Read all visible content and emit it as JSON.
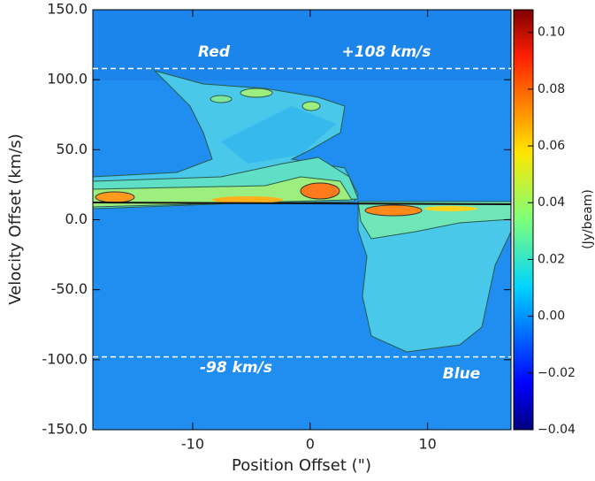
{
  "chart_data": {
    "type": "heatmap",
    "xlabel": "Position Offset (\")",
    "ylabel": "Velocity Offset (km/s)",
    "xlim": [
      -18.5,
      17.1
    ],
    "ylim": [
      -150,
      150
    ],
    "xticks": [
      -10,
      0,
      10
    ],
    "yticks": [
      {
        "value": 150,
        "label": "150.0"
      },
      {
        "value": 100,
        "label": "100.0"
      },
      {
        "value": 50,
        "label": "50.0"
      },
      {
        "value": 0,
        "label": "0.0"
      },
      {
        "value": -50,
        "label": "-50.0"
      },
      {
        "value": -100,
        "label": "-100.0"
      },
      {
        "value": -150,
        "label": "-150.0"
      }
    ],
    "hlines": [
      108,
      -98
    ],
    "annotations": [
      "Red",
      "+108 km/s",
      "-98 km/s",
      "Blue"
    ],
    "colorbar": {
      "label": "(Jy/beam)",
      "colormap": "jet",
      "clim": [
        -0.04,
        0.108
      ],
      "ticks": [
        {
          "value": 0.1,
          "label": "0.10"
        },
        {
          "value": 0.08,
          "label": "0.08"
        },
        {
          "value": 0.06,
          "label": "0.06"
        },
        {
          "value": 0.04,
          "label": "0.04"
        },
        {
          "value": 0.02,
          "label": "0.02"
        },
        {
          "value": 0,
          "label": "0.00"
        },
        {
          "value": -0.02,
          "label": "−0.02"
        },
        {
          "value": -0.04,
          "label": "−0.04"
        }
      ]
    }
  }
}
